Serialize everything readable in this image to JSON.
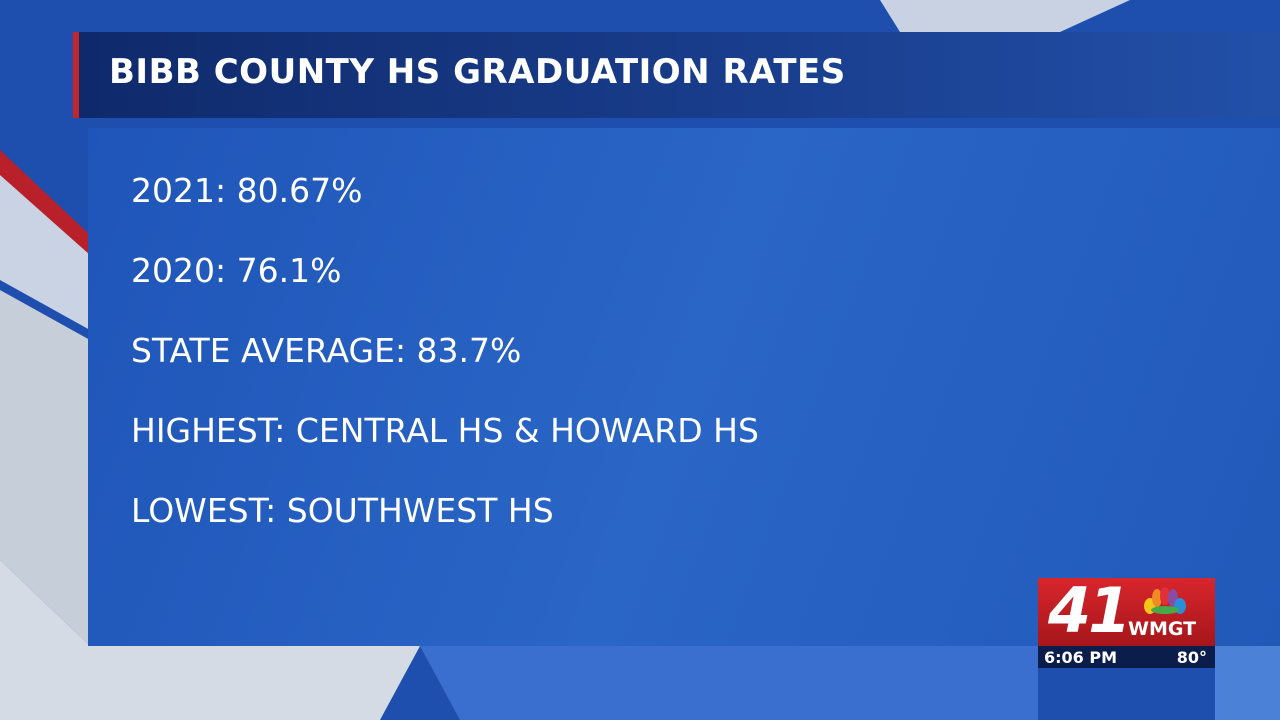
{
  "header": {
    "title": "BIBB COUNTY HS GRADUATION RATES"
  },
  "lines": [
    "2021: 80.67%",
    "2020: 76.1%",
    "STATE AVERAGE: 83.7%",
    "HIGHEST: CENTRAL HS & HOWARD HS",
    "LOWEST: SOUTHWEST HS"
  ],
  "bug": {
    "channel": "41",
    "station": "WMGT",
    "time": "6:06 PM",
    "temperature": "80°"
  }
}
